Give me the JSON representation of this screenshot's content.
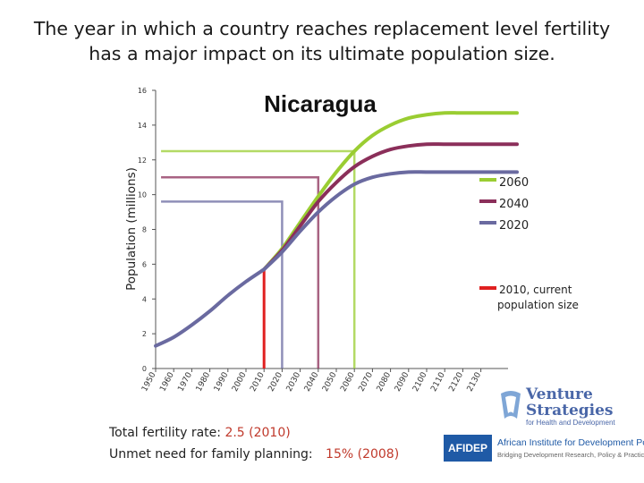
{
  "headline": {
    "line1": "The year in which a country reaches replacement level fertility",
    "line2": "has a major impact on its ultimate population size."
  },
  "chart_data": {
    "type": "line",
    "title": "Nicaragua",
    "ylabel": "Population (millions)",
    "xlabel": "",
    "ylim": [
      0,
      16
    ],
    "xlim": [
      1950,
      2150
    ],
    "y_ticks": [
      0,
      2,
      4,
      6,
      8,
      10,
      12,
      14,
      16
    ],
    "x_ticks": [
      1950,
      1960,
      1970,
      1980,
      1990,
      2000,
      2010,
      2020,
      2030,
      2040,
      2050,
      2060,
      2070,
      2080,
      2090,
      2100,
      2110,
      2120,
      2130
    ],
    "x_tick_labels": [
      "1950",
      "1960",
      "1970",
      "1980",
      "1990",
      "2000",
      "2010",
      "2020",
      "2030",
      "2040",
      "2050",
      "2060",
      "2070",
      "2080",
      "2090",
      "2100",
      "2110",
      "2120",
      "2130"
    ],
    "grid": false,
    "legend_position": "right",
    "history": {
      "x": [
        1950,
        1960,
        1970,
        1980,
        1990,
        2000,
        2010
      ],
      "y": [
        1.3,
        1.8,
        2.5,
        3.3,
        4.2,
        5.0,
        5.7
      ]
    },
    "series": [
      {
        "name": "2060",
        "color": "#9acd32",
        "replacement_year": 2060,
        "reference_level": 12.5,
        "x": [
          2010,
          2020,
          2030,
          2040,
          2050,
          2060,
          2070,
          2080,
          2090,
          2100,
          2110,
          2120,
          2130,
          2140,
          2150
        ],
        "y": [
          5.7,
          6.9,
          8.4,
          9.9,
          11.3,
          12.5,
          13.4,
          14.0,
          14.4,
          14.6,
          14.7,
          14.7,
          14.7,
          14.7,
          14.7
        ]
      },
      {
        "name": "2040",
        "color": "#8b2f5a",
        "replacement_year": 2040,
        "reference_level": 11.0,
        "x": [
          2010,
          2020,
          2030,
          2040,
          2050,
          2060,
          2070,
          2080,
          2090,
          2100,
          2110,
          2120,
          2130,
          2140,
          2150
        ],
        "y": [
          5.7,
          6.8,
          8.2,
          9.6,
          10.7,
          11.6,
          12.2,
          12.6,
          12.8,
          12.9,
          12.9,
          12.9,
          12.9,
          12.9,
          12.9
        ]
      },
      {
        "name": "2020",
        "color": "#6a6aa0",
        "replacement_year": 2020,
        "reference_level": 9.6,
        "x": [
          2010,
          2020,
          2030,
          2040,
          2050,
          2060,
          2070,
          2080,
          2090,
          2100,
          2110,
          2120,
          2130,
          2140,
          2150
        ],
        "y": [
          5.7,
          6.7,
          7.9,
          9.0,
          9.9,
          10.6,
          11.0,
          11.2,
          11.3,
          11.3,
          11.3,
          11.3,
          11.3,
          11.3,
          11.3
        ]
      }
    ],
    "current": {
      "label": "2010, current population size",
      "label_line1": "2010, current",
      "label_line2": "population size",
      "color": "#e02020",
      "year": 2010,
      "value": 5.7
    }
  },
  "indicators": {
    "tfr_label": "Total fertility rate:",
    "tfr_value": "2.5",
    "tfr_year": "(2010)",
    "unmet_label": "Unmet need for family planning:",
    "unmet_value": "15%",
    "unmet_year": "(2008)"
  },
  "logos": {
    "venture_line1": "Venture",
    "venture_line2": "Strategies",
    "venture_tagline": "for Health and Development",
    "afidep_mark": "AFIDEP",
    "afidep_name": "African Institute for Development Policy",
    "afidep_tagline": "Bridging Development Research, Policy & Practice"
  }
}
